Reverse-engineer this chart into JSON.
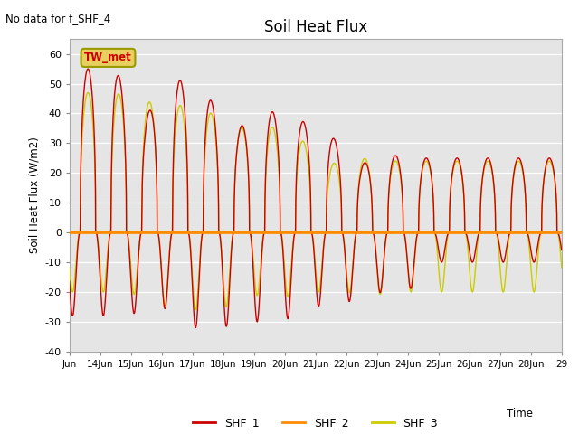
{
  "title": "Soil Heat Flux",
  "no_data_text": "No data for f_SHF_4",
  "tw_met_label": "TW_met",
  "ylabel": "Soil Heat Flux (W/m2)",
  "xlabel": "Time",
  "ylim": [
    -40,
    65
  ],
  "bg_color": "#e5e5e5",
  "fig_color": "#ffffff",
  "shf1_color": "#cc0000",
  "shf2_color": "#ff8c00",
  "shf3_color": "#cccc00",
  "xtick_labels": [
    "Jun",
    "14Jun",
    "15Jun",
    "16Jun",
    "17Jun",
    "18Jun",
    "19Jun",
    "20Jun",
    "21Jun",
    "22Jun",
    "23Jun",
    "24Jun",
    "25Jun",
    "26Jun",
    "27Jun",
    "28Jun",
    "29"
  ],
  "ytick_vals": [
    -40,
    -30,
    -20,
    -10,
    0,
    10,
    20,
    30,
    40,
    50,
    60
  ],
  "legend_entries": [
    "SHF_1",
    "SHF_2",
    "SHF_3"
  ],
  "shf1_day_peaks": [
    55,
    39,
    52,
    46,
    35,
    41,
    38,
    33,
    23,
    26,
    25
  ],
  "shf1_night_troughs": [
    -28,
    -24,
    -32,
    -32,
    -30,
    -30,
    -25,
    -24,
    -20,
    -21,
    -10
  ],
  "shf3_day_peaks": [
    47,
    44,
    41,
    42,
    35,
    36,
    32,
    23,
    25,
    24
  ],
  "shf3_night_troughs": [
    -20,
    -24,
    -26,
    -26,
    -21,
    -22,
    -20,
    -20,
    -21,
    -20
  ]
}
